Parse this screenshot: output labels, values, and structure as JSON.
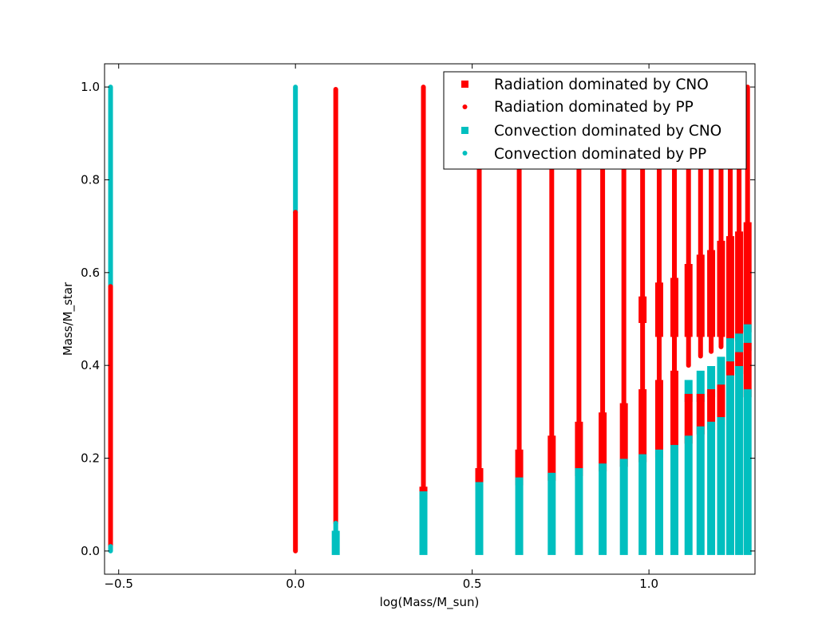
{
  "chart_data": {
    "type": "scatter",
    "xlabel": "log(Mass/M_sun)",
    "ylabel": "Mass/M_star",
    "xlim": [
      -0.54,
      1.3
    ],
    "ylim": [
      -0.05,
      1.05
    ],
    "xticks": [
      -0.5,
      0.0,
      0.5,
      1.0
    ],
    "xtick_labels": [
      "−0.5",
      "0.0",
      "0.5",
      "1.0"
    ],
    "yticks": [
      0.0,
      0.2,
      0.4,
      0.6,
      0.8,
      1.0
    ],
    "ytick_labels": [
      "0.0",
      "0.2",
      "0.4",
      "0.6",
      "0.8",
      "1.0"
    ],
    "legend_position": "top-right",
    "grid": false,
    "series": [
      {
        "name": "Radiation dominated by CNO",
        "color": "#ff0000",
        "marker": "square"
      },
      {
        "name": "Radiation dominated by PP",
        "color": "#ff0000",
        "marker": "circle"
      },
      {
        "name": "Convection dominated by CNO",
        "color": "#00bfbf",
        "marker": "square"
      },
      {
        "name": "Convection dominated by PP",
        "color": "#00bfbf",
        "marker": "circle"
      }
    ],
    "stars": [
      {
        "logM": -0.523,
        "segments": [
          {
            "series": 3,
            "y0": 0.57,
            "y1": 1.0
          },
          {
            "series": 1,
            "y0": 0.01,
            "y1": 0.57
          },
          {
            "series": 3,
            "y0": 0.0,
            "y1": 0.01
          }
        ]
      },
      {
        "logM": 0.0,
        "segments": [
          {
            "series": 3,
            "y0": 0.73,
            "y1": 1.0
          },
          {
            "series": 1,
            "y0": 0.0,
            "y1": 0.73
          }
        ]
      },
      {
        "logM": 0.114,
        "segments": [
          {
            "series": 1,
            "y0": 0.06,
            "y1": 0.995
          },
          {
            "series": 3,
            "y0": 0.0,
            "y1": 0.06
          },
          {
            "series": 2,
            "y0": 0.0,
            "y1": 0.035
          }
        ]
      },
      {
        "logM": 0.362,
        "segments": [
          {
            "series": 1,
            "y0": 0.13,
            "y1": 1.0
          },
          {
            "series": 0,
            "y0": 0.12,
            "y1": 0.13
          },
          {
            "series": 2,
            "y0": 0.0,
            "y1": 0.12
          }
        ]
      },
      {
        "logM": 0.52,
        "segments": [
          {
            "series": 1,
            "y0": 0.17,
            "y1": 1.0
          },
          {
            "series": 0,
            "y0": 0.14,
            "y1": 0.17
          },
          {
            "series": 2,
            "y0": 0.0,
            "y1": 0.14
          }
        ]
      },
      {
        "logM": 0.633,
        "segments": [
          {
            "series": 1,
            "y0": 0.21,
            "y1": 1.0
          },
          {
            "series": 0,
            "y0": 0.15,
            "y1": 0.21
          },
          {
            "series": 2,
            "y0": 0.0,
            "y1": 0.15
          }
        ]
      },
      {
        "logM": 0.725,
        "segments": [
          {
            "series": 1,
            "y0": 0.24,
            "y1": 1.0
          },
          {
            "series": 0,
            "y0": 0.16,
            "y1": 0.24
          },
          {
            "series": 2,
            "y0": 0.0,
            "y1": 0.16
          }
        ]
      },
      {
        "logM": 0.802,
        "segments": [
          {
            "series": 1,
            "y0": 0.27,
            "y1": 1.0
          },
          {
            "series": 0,
            "y0": 0.17,
            "y1": 0.27
          },
          {
            "series": 2,
            "y0": 0.0,
            "y1": 0.17
          }
        ]
      },
      {
        "logM": 0.869,
        "segments": [
          {
            "series": 1,
            "y0": 0.29,
            "y1": 1.0
          },
          {
            "series": 0,
            "y0": 0.18,
            "y1": 0.29
          },
          {
            "series": 2,
            "y0": 0.0,
            "y1": 0.18
          }
        ]
      },
      {
        "logM": 0.929,
        "segments": [
          {
            "series": 1,
            "y0": 0.31,
            "y1": 1.0
          },
          {
            "series": 0,
            "y0": 0.19,
            "y1": 0.31
          },
          {
            "series": 2,
            "y0": 0.0,
            "y1": 0.19
          }
        ]
      },
      {
        "logM": 0.982,
        "segments": [
          {
            "series": 1,
            "y0": 0.54,
            "y1": 1.0
          },
          {
            "series": 0,
            "y0": 0.5,
            "y1": 0.54
          },
          {
            "series": 1,
            "y0": 0.34,
            "y1": 0.5
          },
          {
            "series": 0,
            "y0": 0.2,
            "y1": 0.34
          },
          {
            "series": 2,
            "y0": 0.0,
            "y1": 0.2
          }
        ]
      },
      {
        "logM": 1.029,
        "segments": [
          {
            "series": 1,
            "y0": 0.57,
            "y1": 1.0
          },
          {
            "series": 0,
            "y0": 0.47,
            "y1": 0.57
          },
          {
            "series": 1,
            "y0": 0.36,
            "y1": 0.47
          },
          {
            "series": 0,
            "y0": 0.21,
            "y1": 0.36
          },
          {
            "series": 2,
            "y0": 0.0,
            "y1": 0.21
          }
        ]
      },
      {
        "logM": 1.072,
        "segments": [
          {
            "series": 1,
            "y0": 0.58,
            "y1": 1.0
          },
          {
            "series": 0,
            "y0": 0.47,
            "y1": 0.58
          },
          {
            "series": 1,
            "y0": 0.38,
            "y1": 0.47
          },
          {
            "series": 0,
            "y0": 0.22,
            "y1": 0.38
          },
          {
            "series": 2,
            "y0": 0.0,
            "y1": 0.22
          }
        ]
      },
      {
        "logM": 1.112,
        "segments": [
          {
            "series": 1,
            "y0": 0.61,
            "y1": 1.0
          },
          {
            "series": 0,
            "y0": 0.47,
            "y1": 0.61
          },
          {
            "series": 1,
            "y0": 0.4,
            "y1": 0.47
          },
          {
            "series": 2,
            "y0": 0.33,
            "y1": 0.36
          },
          {
            "series": 0,
            "y0": 0.24,
            "y1": 0.33
          },
          {
            "series": 2,
            "y0": 0.0,
            "y1": 0.24
          }
        ]
      },
      {
        "logM": 1.146,
        "segments": [
          {
            "series": 1,
            "y0": 0.63,
            "y1": 1.0
          },
          {
            "series": 0,
            "y0": 0.47,
            "y1": 0.63
          },
          {
            "series": 1,
            "y0": 0.42,
            "y1": 0.47
          },
          {
            "series": 2,
            "y0": 0.33,
            "y1": 0.38
          },
          {
            "series": 0,
            "y0": 0.26,
            "y1": 0.33
          },
          {
            "series": 2,
            "y0": 0.0,
            "y1": 0.26
          }
        ]
      },
      {
        "logM": 1.176,
        "segments": [
          {
            "series": 1,
            "y0": 0.64,
            "y1": 1.0
          },
          {
            "series": 0,
            "y0": 0.47,
            "y1": 0.64
          },
          {
            "series": 1,
            "y0": 0.43,
            "y1": 0.47
          },
          {
            "series": 2,
            "y0": 0.34,
            "y1": 0.39
          },
          {
            "series": 0,
            "y0": 0.27,
            "y1": 0.34
          },
          {
            "series": 2,
            "y0": 0.0,
            "y1": 0.27
          }
        ]
      },
      {
        "logM": 1.204,
        "segments": [
          {
            "series": 1,
            "y0": 0.66,
            "y1": 1.0
          },
          {
            "series": 0,
            "y0": 0.47,
            "y1": 0.66
          },
          {
            "series": 1,
            "y0": 0.44,
            "y1": 0.47
          },
          {
            "series": 2,
            "y0": 0.35,
            "y1": 0.41
          },
          {
            "series": 0,
            "y0": 0.28,
            "y1": 0.35
          },
          {
            "series": 2,
            "y0": 0.0,
            "y1": 0.28
          }
        ]
      },
      {
        "logM": 1.23,
        "segments": [
          {
            "series": 1,
            "y0": 0.67,
            "y1": 1.0
          },
          {
            "series": 0,
            "y0": 0.46,
            "y1": 0.67
          },
          {
            "series": 2,
            "y0": 0.4,
            "y1": 0.45
          },
          {
            "series": 0,
            "y0": 0.37,
            "y1": 0.4
          },
          {
            "series": 2,
            "y0": 0.0,
            "y1": 0.37
          }
        ]
      },
      {
        "logM": 1.255,
        "segments": [
          {
            "series": 1,
            "y0": 0.68,
            "y1": 1.0
          },
          {
            "series": 0,
            "y0": 0.46,
            "y1": 0.68
          },
          {
            "series": 2,
            "y0": 0.42,
            "y1": 0.46
          },
          {
            "series": 0,
            "y0": 0.39,
            "y1": 0.42
          },
          {
            "series": 2,
            "y0": 0.0,
            "y1": 0.39
          }
        ]
      },
      {
        "logM": 1.279,
        "segments": [
          {
            "series": 1,
            "y0": 0.7,
            "y1": 1.0
          },
          {
            "series": 0,
            "y0": 0.48,
            "y1": 0.7
          },
          {
            "series": 2,
            "y0": 0.44,
            "y1": 0.48
          },
          {
            "series": 0,
            "y0": 0.34,
            "y1": 0.44
          },
          {
            "series": 2,
            "y0": 0.0,
            "y1": 0.34
          }
        ]
      }
    ]
  }
}
